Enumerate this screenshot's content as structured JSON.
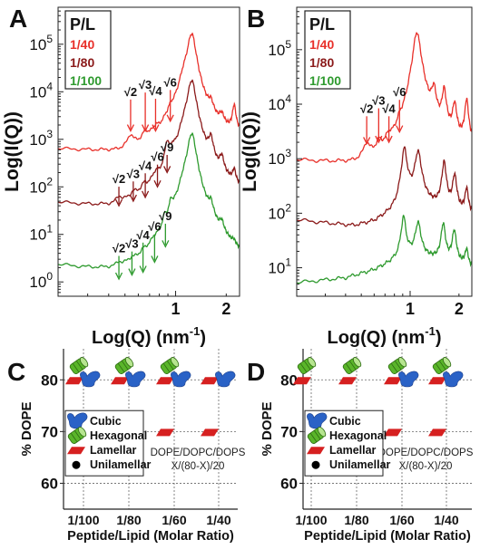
{
  "colors": {
    "red": "#e8302a",
    "darkred": "#8b1a1a",
    "green": "#2e9a2e",
    "blue": "#2a62c6",
    "lamellar": "#d62020",
    "hexagonal": "#5ab52a",
    "black": "#000000"
  },
  "chart_data": [
    {
      "panel_letter": "A",
      "type": "line",
      "xlabel": "Log(Q) (nm",
      "xlabel_sup": "-1",
      "xlabel_tail": ")",
      "ylabel": "Log(I(Q))",
      "x_scale": "log",
      "y_scale": "log",
      "xlim": [
        0.2,
        2.4
      ],
      "ylim": [
        0.5,
        600000
      ],
      "x_ticks": [
        1,
        2
      ],
      "y_ticks": [
        {
          "base": "10",
          "exp": "0",
          "value": 1
        },
        {
          "base": "10",
          "exp": "1",
          "value": 10
        },
        {
          "base": "10",
          "exp": "2",
          "value": 100
        },
        {
          "base": "10",
          "exp": "3",
          "value": 1000
        },
        {
          "base": "10",
          "exp": "4",
          "value": 10000
        },
        {
          "base": "10",
          "exp": "5",
          "value": 100000
        }
      ],
      "legend": {
        "title": "P/L",
        "entries": [
          "1/40",
          "1/80",
          "1/100"
        ],
        "placement": "top-left"
      },
      "series": [
        {
          "name": "1/40",
          "color_key": "red",
          "baseline": [
            [
              0.2,
              600
            ],
            [
              0.45,
              500
            ],
            [
              0.6,
              620
            ],
            [
              0.8,
              900
            ],
            [
              1.0,
              1700
            ],
            [
              1.1,
              2500
            ],
            [
              1.3,
              1700
            ],
            [
              1.6,
              1150
            ],
            [
              1.9,
              1000
            ],
            [
              2.2,
              950
            ],
            [
              2.35,
              950
            ]
          ],
          "peaks": [
            [
              0.54,
              1.9,
              0.018
            ],
            [
              0.66,
              1.6,
              0.018
            ],
            [
              0.76,
              1.5,
              0.018
            ],
            [
              0.93,
              1.7,
              0.02
            ],
            [
              1.25,
              90,
              0.022
            ],
            [
              1.62,
              3.5,
              0.015
            ],
            [
              1.88,
              2.3,
              0.015
            ],
            [
              2.23,
              5,
              0.01
            ]
          ]
        },
        {
          "name": "1/80",
          "color_key": "darkred",
          "baseline": [
            [
              0.2,
              42
            ],
            [
              0.45,
              30
            ],
            [
              0.6,
              40
            ],
            [
              0.8,
              55
            ],
            [
              1.0,
              90
            ],
            [
              1.1,
              120
            ],
            [
              1.3,
              90
            ],
            [
              1.6,
              70
            ],
            [
              1.9,
              60
            ],
            [
              2.2,
              55
            ],
            [
              2.35,
              52
            ]
          ],
          "peaks": [
            [
              0.46,
              1.6,
              0.02
            ],
            [
              0.56,
              1.4,
              0.018
            ],
            [
              0.65,
              1.6,
              0.018
            ],
            [
              0.76,
              2.2,
              0.02
            ],
            [
              0.89,
              10,
              0.012
            ],
            [
              0.96,
              4,
              0.012
            ],
            [
              1.25,
              180,
              0.022
            ],
            [
              1.62,
              12,
              0.014
            ],
            [
              1.88,
              5,
              0.013
            ],
            [
              2.23,
              3,
              0.01
            ]
          ]
        },
        {
          "name": "1/100",
          "color_key": "green",
          "baseline": [
            [
              0.2,
              1.7
            ],
            [
              0.45,
              0.95
            ],
            [
              0.6,
              1.05
            ],
            [
              0.8,
              1.5
            ],
            [
              1.0,
              2.5
            ],
            [
              1.1,
              3.2
            ],
            [
              1.3,
              2.5
            ],
            [
              1.6,
              1.8
            ],
            [
              1.9,
              1.5
            ],
            [
              2.2,
              1.4
            ],
            [
              2.35,
              1.3
            ]
          ],
          "peaks": [
            [
              0.46,
              1.5,
              0.02
            ],
            [
              0.55,
              1.4,
              0.018
            ],
            [
              0.64,
              1.5,
              0.018
            ],
            [
              0.75,
              2,
              0.02
            ],
            [
              0.86,
              6,
              0.012
            ],
            [
              0.94,
              12,
              0.012
            ],
            [
              1.25,
              500,
              0.022
            ],
            [
              1.62,
              15,
              0.014
            ],
            [
              1.88,
              6,
              0.013
            ],
            [
              2.22,
              1.8,
              0.01
            ]
          ]
        }
      ],
      "annotations": [
        {
          "text": "√2",
          "x": 0.54,
          "y_label": 8200,
          "y_tip": 1500,
          "color_key": "red"
        },
        {
          "text": "√3",
          "x": 0.66,
          "y_label": 11500,
          "y_tip": 1500,
          "color_key": "red"
        },
        {
          "text": "√4",
          "x": 0.76,
          "y_label": 8500,
          "y_tip": 1500,
          "color_key": "red"
        },
        {
          "text": "√6",
          "x": 0.93,
          "y_label": 13000,
          "y_tip": 2400,
          "color_key": "red"
        },
        {
          "text": "√2",
          "x": 0.46,
          "y_label": 120,
          "y_tip": 40,
          "color_key": "darkred"
        },
        {
          "text": "√3",
          "x": 0.56,
          "y_label": 155,
          "y_tip": 50,
          "color_key": "darkred"
        },
        {
          "text": "√4",
          "x": 0.66,
          "y_label": 230,
          "y_tip": 60,
          "color_key": "darkred"
        },
        {
          "text": "√6",
          "x": 0.78,
          "y_label": 350,
          "y_tip": 100,
          "color_key": "darkred"
        },
        {
          "text": "√9",
          "x": 0.89,
          "y_label": 560,
          "y_tip": 200,
          "color_key": "darkred"
        },
        {
          "text": "√2",
          "x": 0.46,
          "y_label": 4.2,
          "y_tip": 1.15,
          "color_key": "green"
        },
        {
          "text": "√3",
          "x": 0.55,
          "y_label": 5.2,
          "y_tip": 1.4,
          "color_key": "green"
        },
        {
          "text": "√4",
          "x": 0.64,
          "y_label": 8,
          "y_tip": 1.6,
          "color_key": "green"
        },
        {
          "text": "√6",
          "x": 0.75,
          "y_label": 12,
          "y_tip": 2.6,
          "color_key": "green"
        },
        {
          "text": "√9",
          "x": 0.87,
          "y_label": 20,
          "y_tip": 5.5,
          "color_key": "green"
        }
      ]
    },
    {
      "panel_letter": "B",
      "type": "line",
      "xlabel": "Log(Q) (nm",
      "xlabel_sup": "-1",
      "xlabel_tail": ")",
      "ylabel": "Log(I(Q))",
      "x_scale": "log",
      "y_scale": "log",
      "xlim": [
        0.2,
        2.4
      ],
      "ylim": [
        3,
        600000
      ],
      "x_ticks": [
        1,
        2
      ],
      "y_ticks": [
        {
          "base": "10",
          "exp": "1",
          "value": 10
        },
        {
          "base": "10",
          "exp": "2",
          "value": 100
        },
        {
          "base": "10",
          "exp": "3",
          "value": 1000
        },
        {
          "base": "10",
          "exp": "4",
          "value": 10000
        },
        {
          "base": "10",
          "exp": "5",
          "value": 100000
        }
      ],
      "legend": {
        "title": "P/L",
        "entries": [
          "1/40",
          "1/80",
          "1/100"
        ],
        "placement": "top-left"
      },
      "series": [
        {
          "name": "1/40",
          "color_key": "red",
          "baseline": [
            [
              0.2,
              900
            ],
            [
              0.45,
              750
            ],
            [
              0.6,
              900
            ],
            [
              0.8,
              1300
            ],
            [
              1.0,
              2400
            ],
            [
              1.1,
              3000
            ],
            [
              1.3,
              2400
            ],
            [
              1.6,
              1800
            ],
            [
              1.9,
              1600
            ],
            [
              2.2,
              1500
            ],
            [
              2.35,
              1450
            ]
          ],
          "peaks": [
            [
              0.54,
              2,
              0.02
            ],
            [
              0.64,
              1.7,
              0.018
            ],
            [
              0.74,
              1.6,
              0.018
            ],
            [
              0.86,
              1.7,
              0.02
            ],
            [
              1.1,
              70,
              0.022
            ],
            [
              1.4,
              8,
              0.014
            ],
            [
              1.62,
              10,
              0.012
            ],
            [
              1.88,
              6,
              0.012
            ],
            [
              2.23,
              8,
              0.01
            ]
          ]
        },
        {
          "name": "1/80",
          "color_key": "darkred",
          "baseline": [
            [
              0.2,
              75
            ],
            [
              0.45,
              58
            ],
            [
              0.6,
              68
            ],
            [
              0.8,
              100
            ],
            [
              1.0,
              150
            ],
            [
              1.1,
              170
            ],
            [
              1.3,
              140
            ],
            [
              1.6,
              110
            ],
            [
              1.9,
              100
            ],
            [
              2.2,
              95
            ],
            [
              2.35,
              90
            ]
          ],
          "peaks": [
            [
              0.92,
              12,
              0.015
            ],
            [
              1.12,
              8,
              0.018
            ],
            [
              1.62,
              8,
              0.012
            ],
            [
              1.88,
              5,
              0.012
            ],
            [
              2.23,
              3,
              0.01
            ]
          ]
        },
        {
          "name": "1/100",
          "color_key": "green",
          "baseline": [
            [
              0.2,
              5.3
            ],
            [
              0.4,
              6.5
            ],
            [
              0.6,
              9
            ],
            [
              0.8,
              13
            ],
            [
              1.0,
              16
            ],
            [
              1.1,
              17
            ],
            [
              1.3,
              15
            ],
            [
              1.6,
              13
            ],
            [
              1.9,
              12
            ],
            [
              2.2,
              11
            ],
            [
              2.35,
              10
            ]
          ],
          "peaks": [
            [
              0.91,
              6,
              0.013
            ],
            [
              1.12,
              4,
              0.016
            ],
            [
              1.6,
              5,
              0.012
            ],
            [
              1.87,
              4,
              0.012
            ],
            [
              2.23,
              2,
              0.01
            ]
          ]
        }
      ],
      "annotations": [
        {
          "text": "√2",
          "x": 0.54,
          "y_label": 7000,
          "y_tip": 1900,
          "color_key": "red"
        },
        {
          "text": "√3",
          "x": 0.64,
          "y_label": 9800,
          "y_tip": 2000,
          "color_key": "red"
        },
        {
          "text": "√4",
          "x": 0.74,
          "y_label": 7000,
          "y_tip": 2000,
          "color_key": "red"
        },
        {
          "text": "√6",
          "x": 0.86,
          "y_label": 14000,
          "y_tip": 3100,
          "color_key": "red"
        }
      ]
    },
    {
      "panel_letter": "C",
      "type": "scatter",
      "xlabel": "Peptide/Lipid (Molar Ratio)",
      "ylabel": "% DOPE",
      "categories": [
        "1/100",
        "1/80",
        "1/60",
        "1/40"
      ],
      "y_ticks": [
        60,
        70,
        80
      ],
      "ylim": [
        55,
        86
      ],
      "grid": true,
      "composition_note": [
        "DOPE/DOPC/DOPS",
        "X/(80-X)/20"
      ],
      "legend": [
        {
          "label": "Cubic",
          "marker": "cubic"
        },
        {
          "label": "Hexagonal",
          "marker": "hexagonal"
        },
        {
          "label": "Lamellar",
          "marker": "lamellar"
        },
        {
          "label": "Unilamellar",
          "marker": "unilamellar"
        }
      ],
      "points": [
        {
          "category": "1/100",
          "y": 80,
          "phases": [
            "hexagonal",
            "lamellar",
            "cubic"
          ]
        },
        {
          "category": "1/80",
          "y": 80,
          "phases": [
            "hexagonal",
            "lamellar",
            "cubic"
          ]
        },
        {
          "category": "1/60",
          "y": 80,
          "phases": [
            "hexagonal",
            "lamellar",
            "cubic"
          ]
        },
        {
          "category": "1/40",
          "y": 80,
          "phases": [
            "lamellar",
            "cubic"
          ]
        },
        {
          "category": "1/100",
          "y": 70,
          "phases": [
            "lamellar"
          ]
        },
        {
          "category": "1/80",
          "y": 70,
          "phases": [
            "lamellar"
          ]
        },
        {
          "category": "1/60",
          "y": 70,
          "phases": [
            "lamellar"
          ]
        },
        {
          "category": "1/40",
          "y": 70,
          "phases": [
            "lamellar"
          ]
        }
      ]
    },
    {
      "panel_letter": "D",
      "type": "scatter",
      "xlabel": "Peptide/Lipid (Molar Ratio)",
      "ylabel": "% DOPE",
      "categories": [
        "1/100",
        "1/80",
        "1/60",
        "1/40"
      ],
      "y_ticks": [
        60,
        70,
        80
      ],
      "ylim": [
        55,
        86
      ],
      "grid": true,
      "composition_note": [
        "DOPE/DOPC/DOPS",
        "X/(80-X)/20"
      ],
      "legend": [
        {
          "label": "Cubic",
          "marker": "cubic"
        },
        {
          "label": "Hexagonal",
          "marker": "hexagonal"
        },
        {
          "label": "Lamellar",
          "marker": "lamellar"
        },
        {
          "label": "Unilamellar",
          "marker": "unilamellar"
        }
      ],
      "points": [
        {
          "category": "1/100",
          "y": 80,
          "phases": [
            "hexagonal",
            "lamellar"
          ]
        },
        {
          "category": "1/80",
          "y": 80,
          "phases": [
            "hexagonal",
            "lamellar"
          ]
        },
        {
          "category": "1/60",
          "y": 80,
          "phases": [
            "hexagonal",
            "lamellar",
            "cubic"
          ]
        },
        {
          "category": "1/40",
          "y": 80,
          "phases": [
            "hexagonal",
            "lamellar",
            "cubic"
          ]
        },
        {
          "category": "1/100",
          "y": 70,
          "phases": [
            "unilamellar"
          ]
        },
        {
          "category": "1/80",
          "y": 70,
          "phases": [
            "unilamellar"
          ]
        },
        {
          "category": "1/60",
          "y": 70,
          "phases": [
            "lamellar"
          ]
        },
        {
          "category": "1/40",
          "y": 70,
          "phases": [
            "lamellar"
          ]
        }
      ]
    }
  ]
}
